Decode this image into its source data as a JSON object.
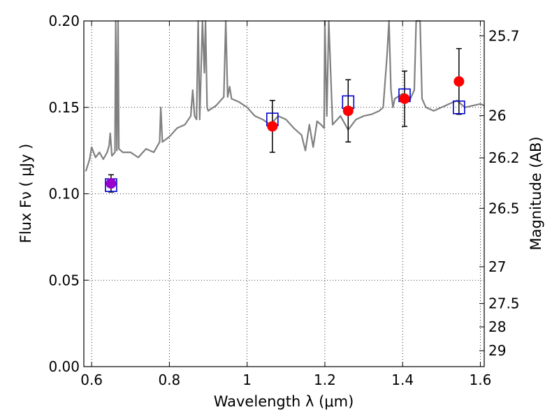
{
  "chart_data": {
    "type": "scatter",
    "xlabel": "Wavelength  λ (μm)",
    "ylabel": "Flux  Fν  ( μJy )",
    "ylabel_right": "Magnitude (AB)",
    "xlim": [
      0.58,
      1.61
    ],
    "ylim": [
      0.0,
      0.2
    ],
    "grid": true,
    "x_ticks": [
      0.6,
      0.8,
      1.0,
      1.2,
      1.4,
      1.6
    ],
    "x_tick_labels": [
      "0.6",
      "0.8",
      "1",
      "1.2",
      "1.4",
      "1.6"
    ],
    "y_ticks": [
      0.0,
      0.05,
      0.1,
      0.15,
      0.2
    ],
    "y_tick_labels": [
      "0.00",
      "0.05",
      "0.10",
      "0.15",
      "0.20"
    ],
    "right_ticks": [
      {
        "label": "25.7",
        "flux": 0.1914
      },
      {
        "label": "26",
        "flux": 0.1452
      },
      {
        "label": "26.2",
        "flux": 0.1208
      },
      {
        "label": "26.5",
        "flux": 0.0916
      },
      {
        "label": "27",
        "flux": 0.0578
      },
      {
        "label": "27.5",
        "flux": 0.0365
      },
      {
        "label": "28",
        "flux": 0.023
      },
      {
        "label": "29",
        "flux": 0.0092
      }
    ],
    "colors": {
      "spectrum": "#808080",
      "model_points": "#0000cc",
      "observed_points": "#ff0000",
      "errorbars": "#000000",
      "overlap": "#9900cc"
    },
    "spectrum": {
      "x": [
        0.585,
        0.595,
        0.6,
        0.61,
        0.62,
        0.63,
        0.64,
        0.645,
        0.648,
        0.652,
        0.66,
        0.662,
        0.665,
        0.668,
        0.67,
        0.68,
        0.7,
        0.72,
        0.74,
        0.76,
        0.775,
        0.778,
        0.782,
        0.8,
        0.82,
        0.84,
        0.855,
        0.86,
        0.865,
        0.87,
        0.874,
        0.878,
        0.885,
        0.89,
        0.893,
        0.897,
        0.9,
        0.92,
        0.94,
        0.945,
        0.95,
        0.955,
        0.96,
        0.98,
        1.0,
        1.02,
        1.04,
        1.06,
        1.08,
        1.1,
        1.12,
        1.14,
        1.15,
        1.16,
        1.17,
        1.18,
        1.19,
        1.198,
        1.2,
        1.205,
        1.21,
        1.22,
        1.24,
        1.26,
        1.28,
        1.3,
        1.32,
        1.34,
        1.35,
        1.36,
        1.365,
        1.37,
        1.375,
        1.38,
        1.4,
        1.42,
        1.43,
        1.435,
        1.44,
        1.445,
        1.45,
        1.46,
        1.48,
        1.5,
        1.52,
        1.54,
        1.56,
        1.58,
        1.6,
        1.61
      ],
      "y": [
        0.113,
        0.12,
        0.127,
        0.121,
        0.124,
        0.12,
        0.124,
        0.128,
        0.135,
        0.122,
        0.124,
        0.2,
        0.125,
        0.2,
        0.126,
        0.124,
        0.124,
        0.121,
        0.126,
        0.124,
        0.13,
        0.15,
        0.13,
        0.133,
        0.138,
        0.14,
        0.145,
        0.16,
        0.145,
        0.143,
        0.2,
        0.143,
        0.2,
        0.17,
        0.2,
        0.15,
        0.148,
        0.151,
        0.156,
        0.2,
        0.156,
        0.162,
        0.155,
        0.153,
        0.15,
        0.145,
        0.143,
        0.14,
        0.145,
        0.143,
        0.138,
        0.134,
        0.125,
        0.14,
        0.127,
        0.142,
        0.14,
        0.138,
        0.2,
        0.145,
        0.2,
        0.14,
        0.145,
        0.137,
        0.143,
        0.145,
        0.146,
        0.148,
        0.15,
        0.18,
        0.2,
        0.16,
        0.15,
        0.155,
        0.158,
        0.155,
        0.16,
        0.2,
        0.2,
        0.2,
        0.155,
        0.15,
        0.148,
        0.15,
        0.152,
        0.154,
        0.15,
        0.151,
        0.152,
        0.151
      ]
    },
    "model_points": {
      "x": [
        0.65,
        1.065,
        1.26,
        1.405,
        1.545
      ],
      "y": [
        0.105,
        0.143,
        0.153,
        0.157,
        0.15
      ]
    },
    "observed_points": {
      "x": [
        0.65,
        1.065,
        1.26,
        1.405,
        1.545
      ],
      "y": [
        0.106,
        0.139,
        0.148,
        0.155,
        0.165
      ],
      "yerr": [
        0.005,
        0.015,
        0.018,
        0.016,
        0.019
      ]
    }
  }
}
